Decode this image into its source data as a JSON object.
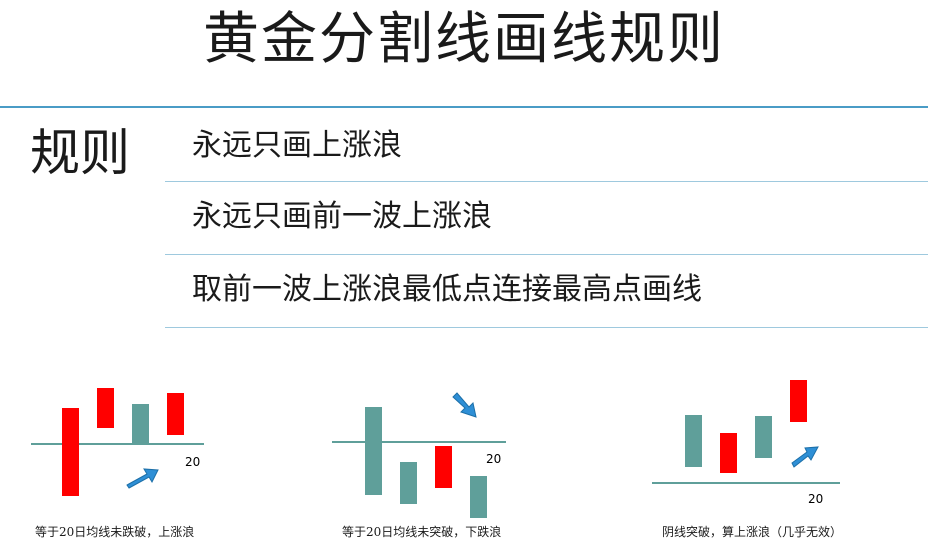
{
  "title": "黄金分割线画线规则",
  "section_label": "规则",
  "rules": [
    "永远只画上涨浪",
    "永远只画前一波上涨浪",
    "取前一波上涨浪最低点连接最高点画线"
  ],
  "examples": [
    {
      "ma_label": "20",
      "caption": "等于20日均线未跌破，上涨浪"
    },
    {
      "ma_label": "20",
      "caption": "等于20日均线未突破，下跌浪"
    },
    {
      "ma_label": "20",
      "caption": "阴线突破，算上涨浪（几乎无效）"
    }
  ],
  "colors": {
    "bull": "#ff0000",
    "bear": "#5f9f9a",
    "line": "#5f9f9a",
    "arrow": "#2e8fd6",
    "accent": "#4a9cc6"
  },
  "icons": [
    "arrow-up-right-icon",
    "arrow-down-right-icon"
  ]
}
